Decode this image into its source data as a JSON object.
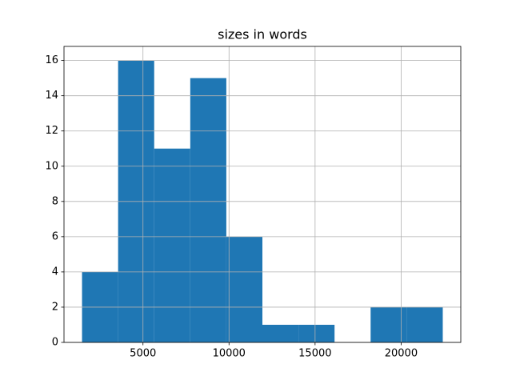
{
  "chart_data": {
    "type": "histogram",
    "title": "sizes in words",
    "bins": [
      1459,
      3555,
      5651,
      7747,
      9843,
      11939,
      14035,
      16131,
      18227,
      20323,
      22419
    ],
    "values": [
      4,
      16,
      11,
      15,
      6,
      1,
      1,
      0,
      2,
      2
    ],
    "color": "#1f77b4",
    "xlim": [
      411,
      23467
    ],
    "xticks": [
      5000,
      10000,
      15000,
      20000
    ],
    "ylim": [
      0,
      16.8
    ],
    "yticks": [
      0,
      2,
      4,
      6,
      8,
      10,
      12,
      14,
      16
    ],
    "grid": true
  }
}
